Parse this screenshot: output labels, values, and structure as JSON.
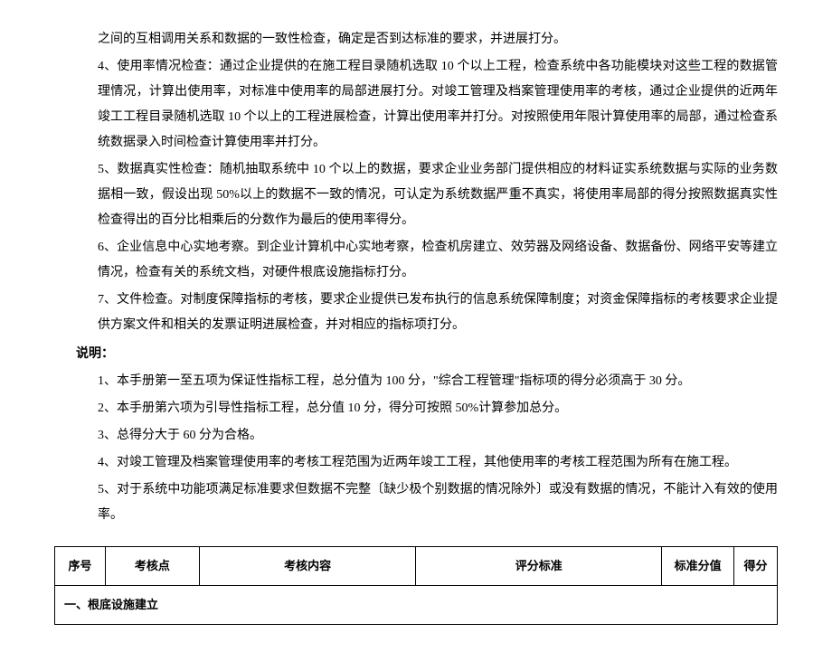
{
  "paragraphs": {
    "p0": "之间的互相调用关系和数据的一致性检查，确定是否到达标准的要求，并进展打分。",
    "p4": "4、使用率情况检查：通过企业提供的在施工程目录随机选取 10 个以上工程，检查系统中各功能模块对这些工程的数据管理情况，计算出使用率，对标准中使用率的局部进展打分。对竣工管理及档案管理使用率的考核，通过企业提供的近两年竣工工程目录随机选取 10 个以上的工程进展检查，计算出使用率并打分。对按照使用年限计算使用率的局部，通过检查系统数据录入时间检查计算使用率并打分。",
    "p5": "5、数据真实性检查：随机抽取系统中 10 个以上的数据，要求企业业务部门提供相应的材料证实系统数据与实际的业务数据相一致，假设出现 50%以上的数据不一致的情况，可认定为系统数据严重不真实，将使用率局部的得分按照数据真实性检查得出的百分比相乘后的分数作为最后的使用率得分。",
    "p6": "6、企业信息中心实地考察。到企业计算机中心实地考察，检查机房建立、效劳器及网络设备、数据备份、网络平安等建立情况，检查有关的系统文档，对硬件根底设施指标打分。",
    "p7": "7、文件检查。对制度保障指标的考核，要求企业提供已发布执行的信息系统保障制度；对资金保障指标的考核要求企业提供方案文件和相关的发票证明进展检查，并对相应的指标项打分。"
  },
  "notes_label": "说明：",
  "notes": {
    "n1": "1、本手册第一至五项为保证性指标工程，总分值为 100 分，\"综合工程管理\"指标项的得分必须高于 30 分。",
    "n2": "2、本手册第六项为引导性指标工程，总分值 10 分，得分可按照 50%计算参加总分。",
    "n3": "3、总得分大于 60 分为合格。",
    "n4": "4、对竣工管理及档案管理使用率的考核工程范围为近两年竣工工程，其他使用率的考核工程范围为所有在施工程。",
    "n5": "5、对于系统中功能项满足标准要求但数据不完整〔缺少极个别数据的情况除外〕或没有数据的情况，不能计入有效的使用率。"
  },
  "table": {
    "headers": {
      "seq": "序号",
      "point": "考核点",
      "content": "考核内容",
      "standard": "评分标准",
      "score_std": "标准分值",
      "score": "得分"
    },
    "section1": "一、根底设施建立"
  }
}
